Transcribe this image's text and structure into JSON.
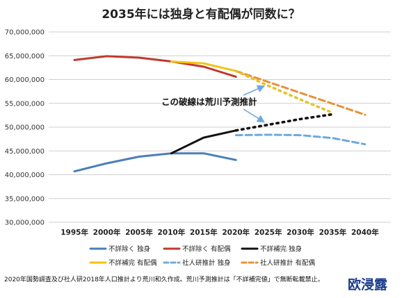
{
  "chart_data": {
    "type": "line",
    "title": "2035年には独身と有配偶が同数に？",
    "xlabel": "",
    "ylabel": "",
    "x": [
      1995,
      2000,
      2005,
      2010,
      2015,
      2020,
      2025,
      2030,
      2035,
      2040
    ],
    "x_tick_labels": [
      "1995年",
      "2000年",
      "2005年",
      "2010年",
      "2015年",
      "2020年",
      "2025年",
      "2030年",
      "2035年",
      "2040年"
    ],
    "ylim": [
      30000000,
      70000000
    ],
    "y_tick_labels": [
      "30,000,000",
      "35,000,000",
      "40,000,000",
      "45,000,000",
      "50,000,000",
      "55,000,000",
      "60,000,000",
      "65,000,000",
      "70,000,000"
    ],
    "grid": true,
    "legend_position": "bottom",
    "series": [
      {
        "name": "不詳除く 独身",
        "color": "#4a7ebb",
        "style": "solid",
        "points": [
          [
            1995,
            40700000
          ],
          [
            2000,
            42400000
          ],
          [
            2005,
            43800000
          ],
          [
            2010,
            44500000
          ],
          [
            2015,
            44500000
          ],
          [
            2020,
            43100000
          ]
        ]
      },
      {
        "name": "不詳除く 有配偶",
        "color": "#c0392b",
        "style": "solid",
        "points": [
          [
            1995,
            64100000
          ],
          [
            2000,
            64900000
          ],
          [
            2005,
            64600000
          ],
          [
            2010,
            63800000
          ],
          [
            2015,
            62700000
          ],
          [
            2020,
            60600000
          ]
        ]
      },
      {
        "name": "不詳補完 独身",
        "color": "#111111",
        "style": "solid",
        "points": [
          [
            2010,
            44500000
          ],
          [
            2015,
            47800000
          ],
          [
            2020,
            49300000
          ]
        ]
      },
      {
        "name": "不詳補完 有配偶",
        "color": "#f1c40f",
        "style": "solid",
        "points": [
          [
            2010,
            63800000
          ],
          [
            2015,
            63400000
          ],
          [
            2020,
            61800000
          ]
        ]
      },
      {
        "name": "社人研推計 独身",
        "color": "#6fa8dc",
        "style": "dashed",
        "points": [
          [
            2020,
            48300000
          ],
          [
            2025,
            48400000
          ],
          [
            2030,
            48300000
          ],
          [
            2035,
            47700000
          ],
          [
            2040,
            46400000
          ]
        ]
      },
      {
        "name": "社人研推計 有配偶",
        "color": "#e69138",
        "style": "dashed",
        "points": [
          [
            2020,
            61800000
          ],
          [
            2025,
            59500000
          ],
          [
            2030,
            57200000
          ],
          [
            2035,
            54900000
          ],
          [
            2040,
            52600000
          ]
        ]
      },
      {
        "name": "荒川予測推計 独身",
        "color": "#111111",
        "style": "dotted",
        "legend": false,
        "points": [
          [
            2020,
            49300000
          ],
          [
            2025,
            50500000
          ],
          [
            2030,
            51700000
          ],
          [
            2035,
            52700000
          ]
        ]
      },
      {
        "name": "荒川予測推計 有配偶",
        "color": "#e6c229",
        "style": "dotted",
        "legend": false,
        "points": [
          [
            2020,
            61800000
          ],
          [
            2025,
            58700000
          ],
          [
            2030,
            55800000
          ],
          [
            2035,
            53000000
          ]
        ]
      }
    ],
    "annotation": {
      "text": "この破線は荒川予測推計",
      "arrow_targets": [
        [
          2025,
          59500000
        ],
        [
          2025,
          50500000
        ]
      ]
    }
  },
  "legend_labels": [
    "不詳除く 独身",
    "不詳除く 有配偶",
    "不詳補完 独身",
    "不詳補完 有配偶",
    "社人研推計 独身",
    "社人研推計 有配偶"
  ],
  "footer": {
    "source_note": "2020年国勢調査及び社人研2018年人口推計より荒川和久作成。荒川予測推計は「不詳補完値」で無断転載禁止。",
    "watermark": "欧浸露"
  }
}
